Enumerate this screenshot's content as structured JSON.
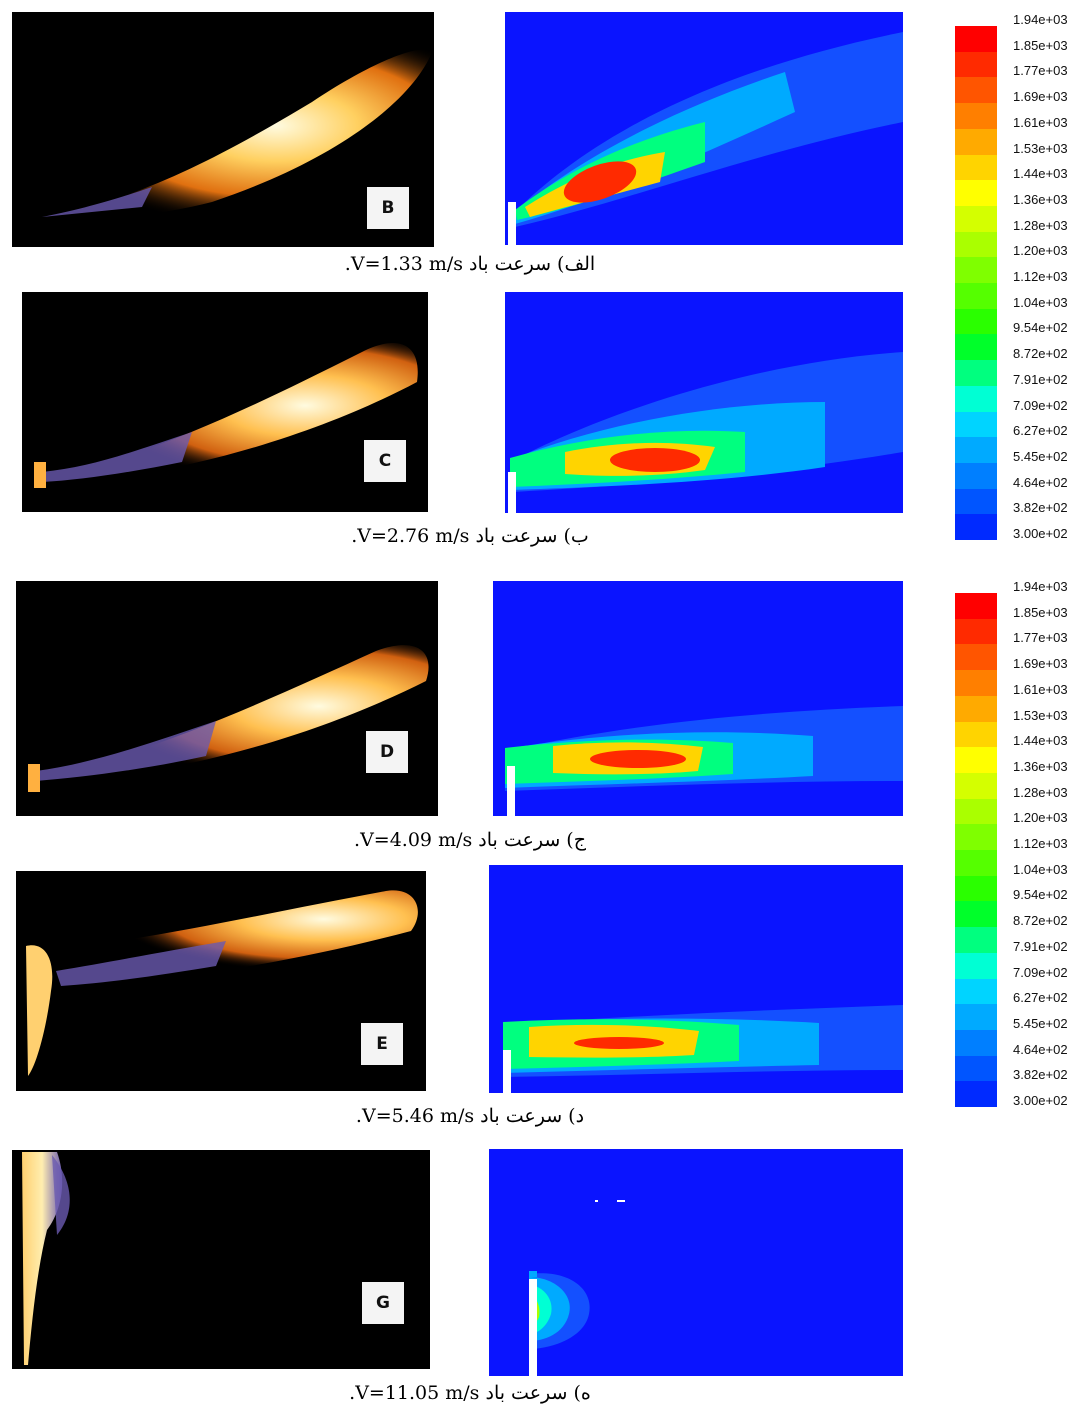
{
  "panels": [
    {
      "label": "B",
      "caption": "الف) سرعت باد V=1.33 m/s."
    },
    {
      "label": "C",
      "caption": "ب) سرعت باد V=2.76 m/s."
    },
    {
      "label": "D",
      "caption": "ج) سرعت باد V=4.09 m/s."
    },
    {
      "label": "E",
      "caption": "د) سرعت باد V=5.46 m/s."
    },
    {
      "label": "G",
      "caption": "ه) سرعت باد V=11.05 m/s."
    }
  ],
  "legend": {
    "ticks": [
      "1.94e+03",
      "1.85e+03",
      "1.77e+03",
      "1.69e+03",
      "1.61e+03",
      "1.53e+03",
      "1.44e+03",
      "1.36e+03",
      "1.28e+03",
      "1.20e+03",
      "1.12e+03",
      "1.04e+03",
      "9.54e+02",
      "8.72e+02",
      "7.91e+02",
      "7.09e+02",
      "6.27e+02",
      "5.45e+02",
      "4.64e+02",
      "3.82e+02",
      "3.00e+02"
    ],
    "colors": [
      "#ff0000",
      "#ff2a00",
      "#ff5500",
      "#ff7f00",
      "#ffaa00",
      "#ffd400",
      "#ffff00",
      "#d4ff00",
      "#aaff00",
      "#7fff00",
      "#55ff00",
      "#2aff00",
      "#00ff2a",
      "#00ff7f",
      "#00ffd4",
      "#00d4ff",
      "#00aaff",
      "#007fff",
      "#0055ff",
      "#002aff",
      "#0000ff"
    ]
  }
}
